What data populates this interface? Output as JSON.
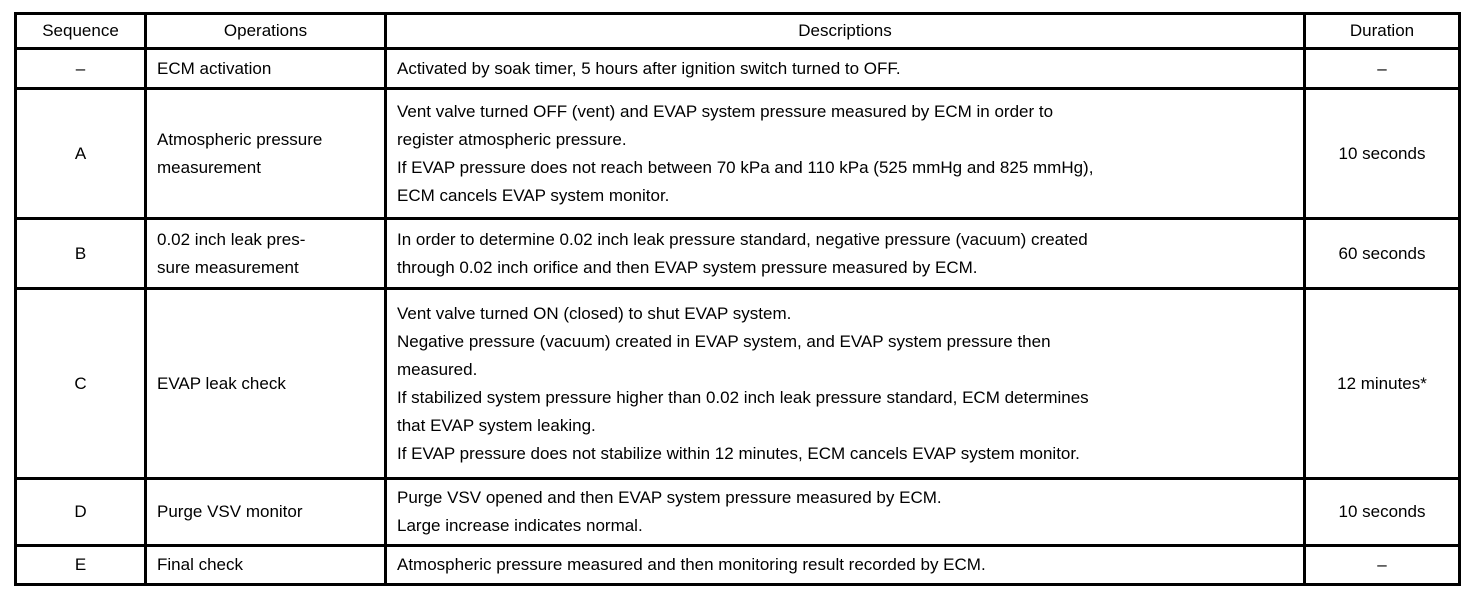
{
  "table": {
    "headers": {
      "sequence": "Sequence",
      "operations": "Operations",
      "descriptions": "Descriptions",
      "duration": "Duration"
    },
    "rows": [
      {
        "sequence": "–",
        "operations": [
          "ECM activation"
        ],
        "descriptions": [
          "Activated by soak timer, 5 hours after ignition switch turned to OFF."
        ],
        "duration": "–"
      },
      {
        "sequence": "A",
        "operations": [
          "Atmospheric pressure",
          "measurement"
        ],
        "descriptions": [
          "Vent valve turned OFF (vent) and EVAP system pressure measured by ECM in order to",
          "register atmospheric pressure.",
          "If EVAP pressure does not reach between 70 kPa and 110 kPa (525 mmHg and 825 mmHg),",
          "ECM cancels EVAP system monitor."
        ],
        "duration": "10 seconds"
      },
      {
        "sequence": "B",
        "operations": [
          "0.02 inch leak pres-",
          "sure measurement"
        ],
        "descriptions": [
          "In order to determine 0.02 inch leak pressure standard, negative pressure (vacuum) created",
          "through 0.02 inch orifice and then EVAP system pressure measured by ECM."
        ],
        "duration": "60 seconds"
      },
      {
        "sequence": "C",
        "operations": [
          "EVAP leak check"
        ],
        "descriptions": [
          "Vent valve turned ON (closed) to shut EVAP system.",
          "Negative pressure (vacuum) created in EVAP system, and EVAP system pressure then",
          "measured.",
          "If stabilized system pressure higher than 0.02 inch leak pressure standard, ECM determines",
          "that EVAP system leaking.",
          "If EVAP pressure does not stabilize within 12 minutes, ECM cancels EVAP system monitor."
        ],
        "duration": "12 minutes*"
      },
      {
        "sequence": "D",
        "operations": [
          "Purge VSV monitor"
        ],
        "descriptions": [
          "Purge VSV opened and then EVAP system pressure measured by ECM.",
          "Large increase indicates normal."
        ],
        "duration": "10 seconds"
      },
      {
        "sequence": "E",
        "operations": [
          "Final check"
        ],
        "descriptions": [
          "Atmospheric pressure measured and then monitoring result recorded by ECM."
        ],
        "duration": "–"
      }
    ]
  },
  "colors": {
    "border": "#000000",
    "text": "#000000",
    "background": "#ffffff"
  }
}
